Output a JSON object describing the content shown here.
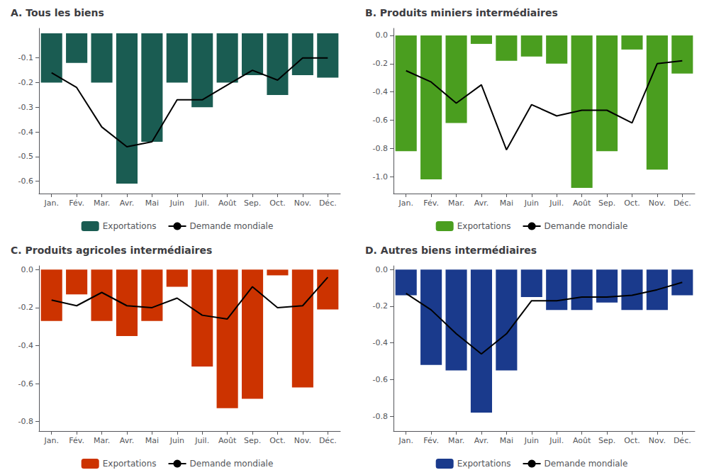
{
  "chart_data": [
    {
      "type": "bar",
      "title": "A. Tous les biens",
      "categories": [
        "Jan.",
        "Fév.",
        "Mar.",
        "Avr.",
        "Mai",
        "Juin",
        "Juil.",
        "Août",
        "Sep.",
        "Oct.",
        "Nov.",
        "Déc."
      ],
      "series": [
        {
          "name": "Exportations",
          "type": "bar",
          "color": "#1a5c52",
          "values": [
            -0.2,
            -0.12,
            -0.2,
            -0.61,
            -0.44,
            -0.2,
            -0.3,
            -0.2,
            -0.17,
            -0.25,
            -0.17,
            -0.18
          ]
        },
        {
          "name": "Demande mondiale",
          "type": "line",
          "color": "#000000",
          "values": [
            -0.16,
            -0.22,
            -0.38,
            -0.46,
            -0.44,
            -0.27,
            -0.27,
            -0.21,
            -0.15,
            -0.19,
            -0.1,
            -0.1
          ]
        }
      ],
      "ylim": [
        -0.65,
        0.02
      ],
      "yticks": [
        -0.6,
        -0.5,
        -0.4,
        -0.3,
        -0.2,
        -0.1
      ],
      "grid": false,
      "legend": "bottom"
    },
    {
      "type": "bar",
      "title": "B. Produits miniers intermédiaires",
      "categories": [
        "Jan.",
        "Fév.",
        "Mar.",
        "Avr.",
        "Mai",
        "Juin",
        "Juil.",
        "Août",
        "Sep.",
        "Oct.",
        "Nov.",
        "Déc."
      ],
      "series": [
        {
          "name": "Exportations",
          "type": "bar",
          "color": "#4a9e1f",
          "values": [
            -0.82,
            -1.02,
            -0.62,
            -0.06,
            -0.18,
            -0.15,
            -0.2,
            -1.08,
            -0.82,
            -0.1,
            -0.95,
            -0.27
          ]
        },
        {
          "name": "Demande mondiale",
          "type": "line",
          "color": "#000000",
          "values": [
            -0.25,
            -0.33,
            -0.48,
            -0.35,
            -0.81,
            -0.49,
            -0.57,
            -0.53,
            -0.53,
            -0.62,
            -0.2,
            -0.18
          ]
        }
      ],
      "ylim": [
        -1.12,
        0.05
      ],
      "yticks": [
        {
          "value": -1.0,
          "label": "-1.0"
        },
        -0.8,
        -0.6,
        -0.4,
        -0.2,
        {
          "value": 0.0,
          "label": "0.0"
        }
      ],
      "grid": false,
      "legend": "bottom"
    },
    {
      "type": "bar",
      "title": "C. Produits agricoles intermédiaires",
      "categories": [
        "Jan.",
        "Fév.",
        "Mar.",
        "Avr.",
        "Mai",
        "Juin",
        "Juil.",
        "Août",
        "Sep.",
        "Oct.",
        "Nov.",
        "Déc."
      ],
      "series": [
        {
          "name": "Exportations",
          "type": "bar",
          "color": "#cc3300",
          "values": [
            -0.27,
            -0.13,
            -0.27,
            -0.35,
            -0.27,
            -0.09,
            -0.51,
            -0.73,
            -0.68,
            -0.03,
            -0.62,
            -0.21
          ]
        },
        {
          "name": "Demande mondiale",
          "type": "line",
          "color": "#000000",
          "values": [
            -0.16,
            -0.19,
            -0.12,
            -0.19,
            -0.2,
            -0.15,
            -0.24,
            -0.26,
            -0.09,
            -0.2,
            -0.19,
            -0.04
          ]
        }
      ],
      "ylim": [
        -0.85,
        0.02
      ],
      "yticks": [
        -0.8,
        -0.6,
        -0.4,
        -0.2,
        {
          "value": 0.0,
          "label": "0.0"
        }
      ],
      "grid": false,
      "legend": "bottom"
    },
    {
      "type": "bar",
      "title": "D. Autres biens intermédiaires",
      "categories": [
        "Jan.",
        "Fév.",
        "Mar.",
        "Avr.",
        "Mai",
        "Juin",
        "Juil.",
        "Août",
        "Sep.",
        "Oct.",
        "Nov.",
        "Déc."
      ],
      "series": [
        {
          "name": "Exportations",
          "type": "bar",
          "color": "#1a3a8c",
          "values": [
            -0.14,
            -0.52,
            -0.55,
            -0.78,
            -0.55,
            -0.15,
            -0.22,
            -0.22,
            -0.18,
            -0.22,
            -0.22,
            -0.14
          ]
        },
        {
          "name": "Demande mondiale",
          "type": "line",
          "color": "#000000",
          "values": [
            -0.13,
            -0.22,
            -0.35,
            -0.46,
            -0.35,
            -0.17,
            -0.17,
            -0.15,
            -0.15,
            -0.14,
            -0.11,
            -0.07
          ]
        }
      ],
      "ylim": [
        -0.88,
        0.02
      ],
      "yticks": [
        -0.8,
        -0.6,
        -0.4,
        -0.2,
        {
          "value": 0.0,
          "label": "0.0"
        }
      ],
      "grid": false,
      "legend": "bottom"
    }
  ]
}
